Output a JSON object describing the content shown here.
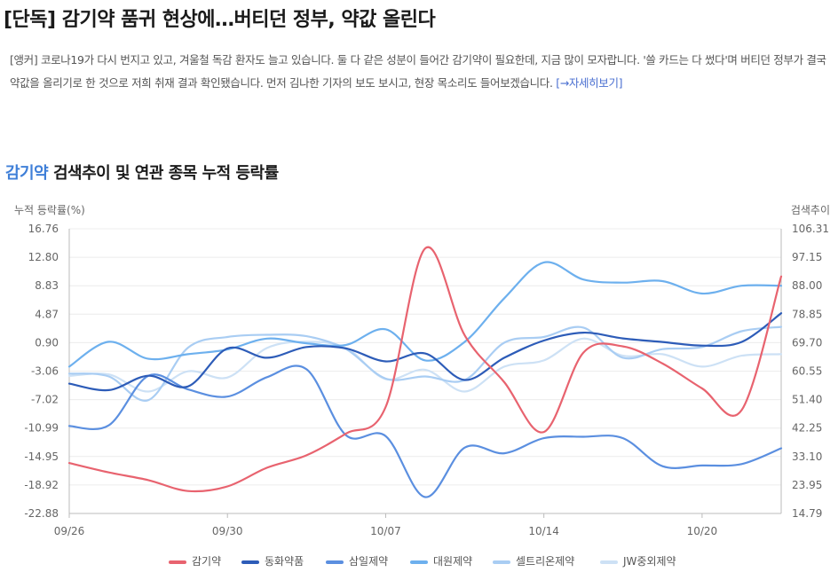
{
  "article": {
    "headline": "[단독] 감기약 품귀 현상에…버티던 정부, 약값 올린다",
    "lead": "[앵커] 코로나19가 다시 번지고 있고, 겨울철 독감 환자도 늘고 있습니다. 둘 다 같은 성분이 들어간 감기약이 필요한데, 지금 많이 모자랍니다. '쓸 카드는 다 썼다'며 버티던 정부가 결국 약값을 올리기로 한 것으로 저희 취재 결과 확인됐습니다. 먼저 김나한 기자의 보도 보시고, 현장 목소리도 들어보겠습니다.",
    "more_link": "[→자세히보기]"
  },
  "chart_section": {
    "keyword": "감기약",
    "title_rest": "검색추이 및 연관 종목 누적 등락률"
  },
  "chart_data": {
    "type": "line",
    "ylabel": "누적 등락률(%)",
    "y2label": "검색추이",
    "yticks": [
      "16.76",
      "12.80",
      "8.83",
      "4.87",
      "0.90",
      "-3.06",
      "-7.02",
      "-10.99",
      "-14.95",
      "-18.92",
      "-22.88"
    ],
    "y2ticks": [
      "106.31",
      "97.15",
      "88.00",
      "78.85",
      "69.70",
      "60.55",
      "51.40",
      "42.25",
      "33.10",
      "23.95",
      "14.79"
    ],
    "ylim": [
      -22.88,
      16.76
    ],
    "y2lim": [
      14.79,
      106.31
    ],
    "xticks": [
      {
        "label": "09/26",
        "index": 0
      },
      {
        "label": "09/30",
        "index": 4
      },
      {
        "label": "10/07",
        "index": 8
      },
      {
        "label": "10/14",
        "index": 12
      },
      {
        "label": "10/20",
        "index": 16
      }
    ],
    "x_count": 19,
    "series": [
      {
        "name": "감기약",
        "axis": "right",
        "color": "#e8636f",
        "values": [
          31.0,
          28.0,
          25.5,
          22.0,
          23.5,
          29.5,
          33.5,
          40.5,
          49.0,
          100.0,
          72.0,
          57.0,
          41.0,
          66.5,
          68.5,
          63.0,
          55.0,
          48.0,
          91.0
        ]
      },
      {
        "name": "동화약품",
        "axis": "left",
        "color": "#2d5cb8",
        "values": [
          -4.8,
          -5.7,
          -3.7,
          -5.2,
          0.1,
          -1.2,
          0.3,
          0.1,
          -1.7,
          -0.6,
          -4.3,
          -1.2,
          1.2,
          2.3,
          1.5,
          1.0,
          0.5,
          1.0,
          5.0
        ]
      },
      {
        "name": "삼일제약",
        "axis": "left",
        "color": "#5b8fe0",
        "values": [
          -10.7,
          -10.6,
          -3.7,
          -5.6,
          -6.6,
          -3.9,
          -2.8,
          -12.0,
          -12.1,
          -20.6,
          -13.7,
          -14.5,
          -12.4,
          -12.2,
          -12.4,
          -16.3,
          -16.2,
          -16.0,
          -13.8
        ]
      },
      {
        "name": "대원제약",
        "axis": "right",
        "color": "#6db0ee",
        "values": [
          62.0,
          70.0,
          64.5,
          66.0,
          67.5,
          71.0,
          69.5,
          69.0,
          74.0,
          64.0,
          70.0,
          84.0,
          95.5,
          90.0,
          89.0,
          89.5,
          85.5,
          88.0,
          88.0
        ]
      },
      {
        "name": "셀트리온제약",
        "axis": "left",
        "color": "#a9cdf3",
        "values": [
          -3.4,
          -3.8,
          -7.1,
          0.2,
          1.7,
          2.0,
          1.8,
          0.0,
          -4.1,
          -3.8,
          -4.3,
          0.9,
          1.7,
          3.0,
          -1.2,
          0.0,
          0.3,
          2.5,
          3.1
        ]
      },
      {
        "name": "JW중외제약",
        "axis": "right",
        "color": "#cde1f5",
        "values": [
          59.0,
          59.5,
          54.0,
          60.5,
          58.5,
          68.0,
          70.0,
          68.0,
          58.0,
          61.0,
          54.0,
          62.0,
          64.0,
          71.0,
          65.5,
          66.0,
          62.0,
          65.5,
          66.0
        ]
      }
    ],
    "grid": true,
    "legend": "bottom"
  }
}
